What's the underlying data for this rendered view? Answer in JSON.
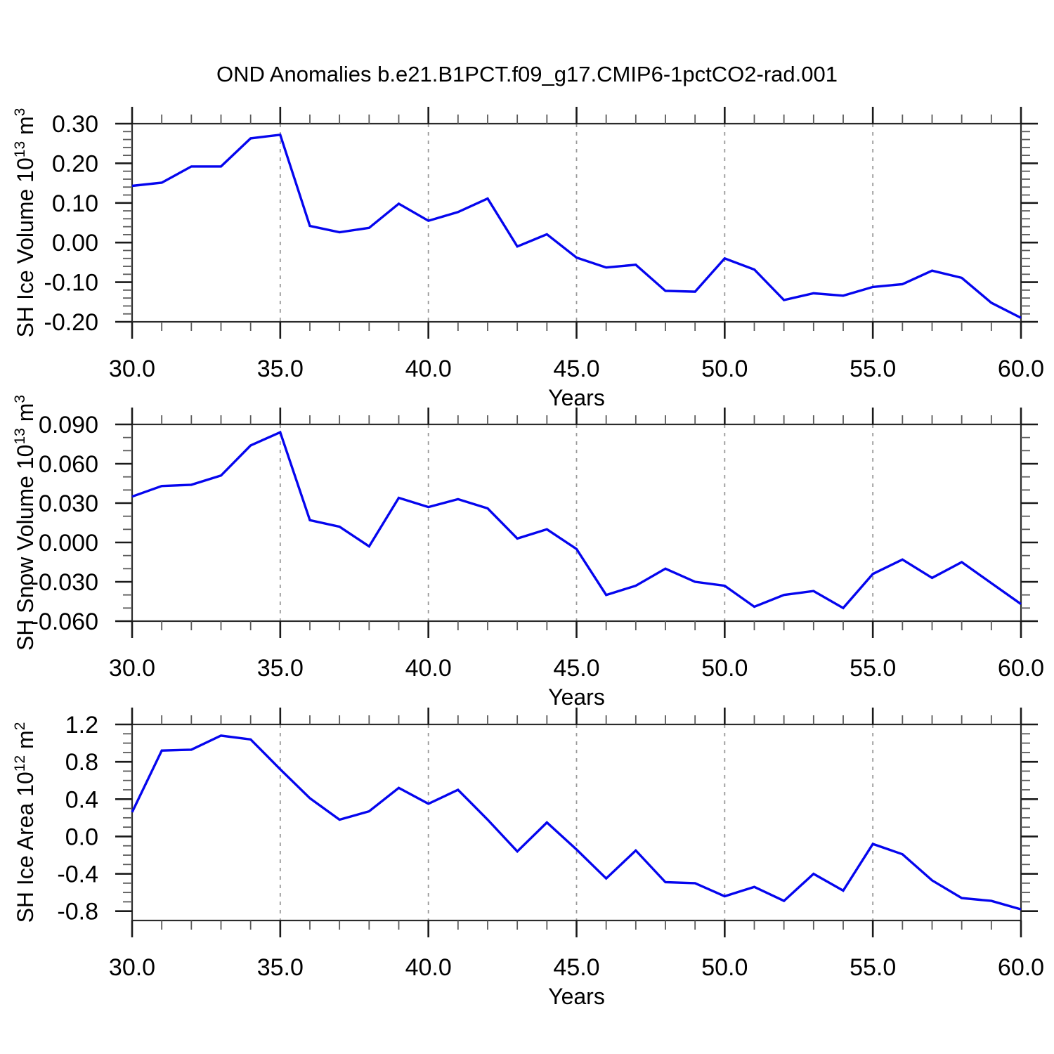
{
  "title": "OND Anomalies b.e21.B1PCT.f09_g17.CMIP6-1pctCO2-rad.001",
  "colors": {
    "line": "#0505ee",
    "axis": "#2b2b2b",
    "major_tick": "#1a1a1a",
    "minor_tick": "#5a5a5a",
    "grid": "#999999",
    "text": "#000000",
    "background": "#ffffff"
  },
  "chart_data": [
    {
      "type": "line",
      "name": "sh-ice-volume",
      "title": "",
      "xlabel": "Years",
      "ylabel_plain": "SH Ice Volume 10^13 m^3",
      "ylabel_segments": [
        {
          "text": "SH Ice Volume 10",
          "sup": false
        },
        {
          "text": "13",
          "sup": true
        },
        {
          "text": " m",
          "sup": false
        },
        {
          "text": "3",
          "sup": true
        }
      ],
      "x": [
        30,
        31,
        32,
        33,
        34,
        35,
        36,
        37,
        38,
        39,
        40,
        41,
        42,
        43,
        44,
        45,
        46,
        47,
        48,
        49,
        50,
        51,
        52,
        53,
        54,
        55,
        56,
        57,
        58,
        59,
        60
      ],
      "values": [
        0.143,
        0.151,
        0.192,
        0.192,
        0.263,
        0.272,
        0.042,
        0.026,
        0.037,
        0.098,
        0.055,
        0.077,
        0.111,
        -0.01,
        0.021,
        -0.038,
        -0.063,
        -0.056,
        -0.122,
        -0.124,
        -0.04,
        -0.068,
        -0.145,
        -0.128,
        -0.134,
        -0.112,
        -0.105,
        -0.071,
        -0.089,
        -0.152,
        -0.19
      ],
      "xlim": [
        30,
        60
      ],
      "ylim": [
        -0.2,
        0.3
      ],
      "xticks": [
        30,
        35,
        40,
        45,
        50,
        55,
        60
      ],
      "xtick_labels": [
        "30.0",
        "35.0",
        "40.0",
        "45.0",
        "50.0",
        "55.0",
        "60.0"
      ],
      "x_minor_step": 1,
      "yticks": [
        -0.2,
        -0.1,
        0.0,
        0.1,
        0.2,
        0.3
      ],
      "ytick_labels": [
        "-0.20",
        "-0.10",
        "0.00",
        "0.10",
        "0.20",
        "0.30"
      ],
      "y_minor_step": 0.02,
      "grid_x": [
        35,
        40,
        45,
        50,
        55
      ],
      "grid_style": "dashed-vertical",
      "legend": null
    },
    {
      "type": "line",
      "name": "sh-snow-volume",
      "title": "",
      "xlabel": "Years",
      "ylabel_plain": "SH Snow Volume 10^13 m^3",
      "ylabel_segments": [
        {
          "text": "SH Snow Volume 10",
          "sup": false
        },
        {
          "text": "13",
          "sup": true
        },
        {
          "text": " m",
          "sup": false
        },
        {
          "text": "3",
          "sup": true
        }
      ],
      "x": [
        30,
        31,
        32,
        33,
        34,
        35,
        36,
        37,
        38,
        39,
        40,
        41,
        42,
        43,
        44,
        45,
        46,
        47,
        48,
        49,
        50,
        51,
        52,
        53,
        54,
        55,
        56,
        57,
        58,
        59,
        60
      ],
      "values": [
        0.035,
        0.043,
        0.044,
        0.051,
        0.074,
        0.084,
        0.017,
        0.012,
        -0.003,
        0.034,
        0.027,
        0.033,
        0.026,
        0.003,
        0.01,
        -0.005,
        -0.04,
        -0.033,
        -0.02,
        -0.03,
        -0.033,
        -0.049,
        -0.04,
        -0.037,
        -0.05,
        -0.024,
        -0.013,
        -0.027,
        -0.015,
        -0.031,
        -0.047
      ],
      "xlim": [
        30,
        60
      ],
      "ylim": [
        -0.06,
        0.09
      ],
      "xticks": [
        30,
        35,
        40,
        45,
        50,
        55,
        60
      ],
      "xtick_labels": [
        "30.0",
        "35.0",
        "40.0",
        "45.0",
        "50.0",
        "55.0",
        "60.0"
      ],
      "x_minor_step": 1,
      "yticks": [
        -0.06,
        -0.03,
        0.0,
        0.03,
        0.06,
        0.09
      ],
      "ytick_labels": [
        "-0.060",
        "-0.030",
        "0.000",
        "0.030",
        "0.060",
        "0.090"
      ],
      "y_minor_step": 0.01,
      "grid_x": [
        35,
        40,
        45,
        50,
        55
      ],
      "grid_style": "dashed-vertical",
      "legend": null
    },
    {
      "type": "line",
      "name": "sh-ice-area",
      "title": "",
      "xlabel": "Years",
      "ylabel_plain": "SH Ice Area 10^12 m^2",
      "ylabel_segments": [
        {
          "text": "SH Ice Area 10",
          "sup": false
        },
        {
          "text": "12",
          "sup": true
        },
        {
          "text": " m",
          "sup": false
        },
        {
          "text": "2",
          "sup": true
        }
      ],
      "x": [
        30,
        31,
        32,
        33,
        34,
        35,
        36,
        37,
        38,
        39,
        40,
        41,
        42,
        43,
        44,
        45,
        46,
        47,
        48,
        49,
        50,
        51,
        52,
        53,
        54,
        55,
        56,
        57,
        58,
        59,
        60
      ],
      "values": [
        0.26,
        0.92,
        0.93,
        1.08,
        1.04,
        0.72,
        0.41,
        0.18,
        0.27,
        0.52,
        0.35,
        0.5,
        0.18,
        -0.16,
        0.15,
        -0.14,
        -0.45,
        -0.15,
        -0.49,
        -0.5,
        -0.64,
        -0.54,
        -0.69,
        -0.4,
        -0.58,
        -0.08,
        -0.19,
        -0.47,
        -0.66,
        -0.69,
        -0.78
      ],
      "xlim": [
        30,
        60
      ],
      "ylim": [
        -0.9,
        1.2
      ],
      "xticks": [
        30,
        35,
        40,
        45,
        50,
        55,
        60
      ],
      "xtick_labels": [
        "30.0",
        "35.0",
        "40.0",
        "45.0",
        "50.0",
        "55.0",
        "60.0"
      ],
      "x_minor_step": 1,
      "yticks": [
        -0.8,
        -0.4,
        0.0,
        0.4,
        0.8,
        1.2
      ],
      "ytick_labels": [
        "-0.8",
        "-0.4",
        "0.0",
        "0.4",
        "0.8",
        "1.2"
      ],
      "y_minor_step": 0.1,
      "grid_x": [
        35,
        40,
        45,
        50,
        55
      ],
      "grid_style": "dashed-vertical",
      "legend": null
    }
  ]
}
